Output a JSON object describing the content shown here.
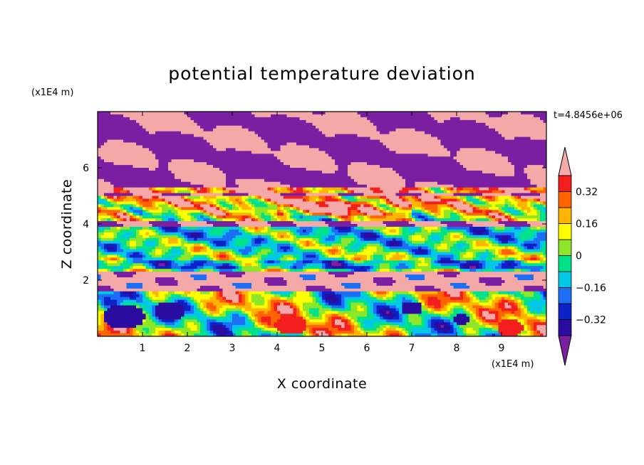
{
  "chart_data": {
    "type": "heatmap",
    "title": "potential temperature deviation",
    "xlabel": "X coordinate",
    "ylabel": "Z coordinate",
    "x_unit": "(x1E4 m)",
    "y_unit": "(x1E4 m)",
    "time_label": "t=4.8456e+06",
    "xlim": [
      0,
      10
    ],
    "ylim": [
      0,
      8
    ],
    "x_ticks": [
      "1",
      "2",
      "3",
      "4",
      "5",
      "6",
      "7",
      "8",
      "9"
    ],
    "y_ticks": [
      "2",
      "4",
      "6"
    ],
    "colorbar": {
      "levels": [
        -0.4,
        -0.32,
        -0.24,
        -0.16,
        -0.08,
        0,
        0.08,
        0.16,
        0.24,
        0.32,
        0.4
      ],
      "tick_labels": [
        "0.32",
        "0.16",
        "0",
        "-0.16",
        "-0.32"
      ],
      "under_color": "#7b1fa2",
      "over_color": "#f4a8a8",
      "colors": [
        "#2a0ca0",
        "#0a22c8",
        "#1e6ef5",
        "#00c8e6",
        "#00e28a",
        "#8ee628",
        "#ffff00",
        "#ffb400",
        "#ff6400",
        "#f51e1e"
      ]
    },
    "layers": [
      {
        "z": [
          7.1,
          8.0
        ],
        "value": "over",
        "note": "pink/purple band top"
      },
      {
        "z": [
          5.4,
          7.1
        ],
        "value": "alternating over/under"
      },
      {
        "z": [
          4.0,
          5.4
        ],
        "value": "mixed -0.08 to 0.32"
      },
      {
        "z": [
          2.3,
          4.0
        ],
        "value": "mixed -0.16 to 0.24"
      },
      {
        "z": [
          1.6,
          2.3
        ],
        "value": "over with under patches"
      },
      {
        "z": [
          0.0,
          1.6
        ],
        "value": "mixed -0.4 to 0.4"
      }
    ]
  }
}
